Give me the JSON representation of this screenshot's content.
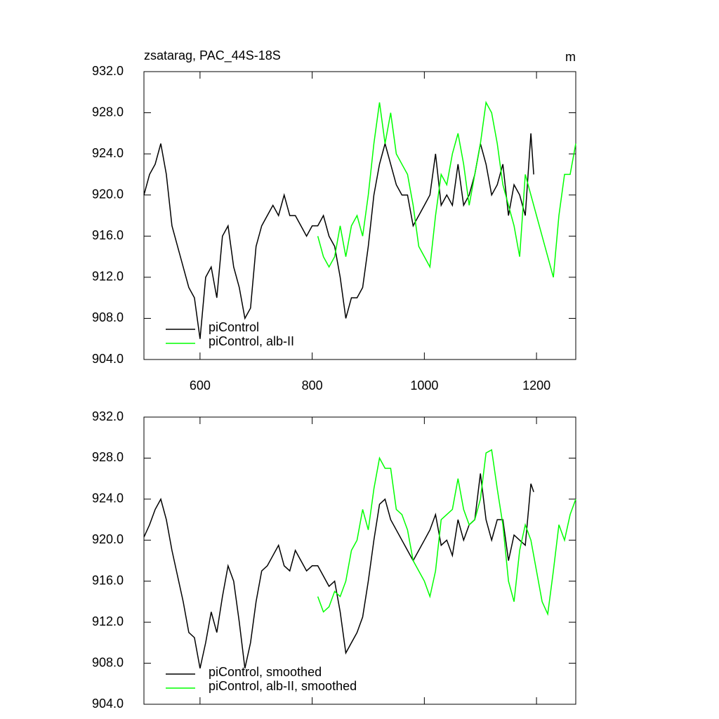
{
  "chart_data": [
    {
      "type": "line",
      "title": "zsatarag, PAC_44S-18S",
      "units": "m",
      "xlim": [
        500,
        1270
      ],
      "xticks": [
        600,
        800,
        1000,
        1200
      ],
      "ylim": [
        904,
        932
      ],
      "yticks": [
        {
          "value": 904,
          "label": "904.0"
        },
        {
          "value": 908,
          "label": "908.0"
        },
        {
          "value": 912,
          "label": "912.0"
        },
        {
          "value": 916,
          "label": "916.0"
        },
        {
          "value": 920,
          "label": "920.0"
        },
        {
          "value": 924,
          "label": "924.0"
        },
        {
          "value": 928,
          "label": "928.0"
        },
        {
          "value": 932,
          "label": "932.0"
        }
      ],
      "series": [
        {
          "name": "piControl",
          "color": "#000000",
          "x": [
            500,
            510,
            520,
            530,
            540,
            550,
            560,
            570,
            580,
            590,
            600,
            610,
            620,
            630,
            640,
            650,
            660,
            670,
            680,
            690,
            700,
            710,
            720,
            730,
            740,
            750,
            760,
            770,
            780,
            790,
            800,
            810,
            820,
            830,
            840,
            850,
            860,
            870,
            880,
            890,
            900,
            910,
            920,
            930,
            940,
            950,
            960,
            970,
            980,
            990,
            1000,
            1010,
            1020,
            1030,
            1040,
            1050,
            1060,
            1070,
            1080,
            1090,
            1100,
            1110,
            1120,
            1130,
            1140,
            1150,
            1160,
            1170,
            1180,
            1190,
            1195
          ],
          "values": [
            920,
            922,
            923,
            925,
            922,
            917,
            915,
            913,
            911,
            910,
            906,
            912,
            913,
            910,
            916,
            917,
            913,
            911,
            908,
            909,
            915,
            917,
            918,
            919,
            918,
            920,
            918,
            918,
            917,
            916,
            917,
            917,
            918,
            916,
            915,
            912,
            908,
            910,
            910,
            911,
            915,
            920,
            923,
            925,
            923,
            921,
            920,
            920,
            917,
            918,
            919,
            920,
            924,
            919,
            920,
            919,
            923,
            919,
            920,
            922,
            925,
            923,
            920,
            921,
            923,
            918,
            921,
            920,
            918,
            926,
            922
          ]
        },
        {
          "name": "piControl, alb-II",
          "color": "#00ff00",
          "x": [
            810,
            820,
            830,
            840,
            850,
            860,
            870,
            880,
            890,
            900,
            910,
            920,
            930,
            940,
            950,
            960,
            970,
            980,
            990,
            1000,
            1010,
            1020,
            1030,
            1040,
            1050,
            1060,
            1070,
            1080,
            1090,
            1100,
            1110,
            1120,
            1130,
            1140,
            1150,
            1160,
            1170,
            1180,
            1190,
            1200,
            1210,
            1220,
            1230,
            1240,
            1250,
            1260,
            1270
          ],
          "values": [
            916,
            914,
            913,
            914,
            917,
            914,
            917,
            918,
            916,
            920,
            925,
            929,
            925,
            928,
            924,
            923,
            922,
            919,
            915,
            914,
            913,
            918,
            922,
            921,
            924,
            926,
            923,
            919,
            922,
            925,
            929,
            928,
            925,
            921,
            919,
            917,
            914,
            922,
            920,
            918,
            916,
            914,
            912,
            918,
            922,
            922,
            925
          ]
        }
      ]
    },
    {
      "type": "line",
      "xlim": [
        500,
        1270
      ],
      "xticks": [
        600,
        800,
        1000,
        1200
      ],
      "ylim": [
        904,
        932
      ],
      "yticks": [
        {
          "value": 904,
          "label": "904.0"
        },
        {
          "value": 908,
          "label": "908.0"
        },
        {
          "value": 912,
          "label": "912.0"
        },
        {
          "value": 916,
          "label": "916.0"
        },
        {
          "value": 920,
          "label": "920.0"
        },
        {
          "value": 924,
          "label": "924.0"
        },
        {
          "value": 928,
          "label": "928.0"
        },
        {
          "value": 932,
          "label": "932.0"
        }
      ],
      "series": [
        {
          "name": "piControl, smoothed",
          "color": "#000000",
          "x": [
            500,
            510,
            520,
            530,
            540,
            550,
            560,
            570,
            580,
            590,
            600,
            610,
            620,
            630,
            640,
            650,
            660,
            670,
            680,
            690,
            700,
            710,
            720,
            730,
            740,
            750,
            760,
            770,
            780,
            790,
            800,
            810,
            820,
            830,
            840,
            850,
            860,
            870,
            880,
            890,
            900,
            910,
            920,
            930,
            940,
            950,
            960,
            970,
            980,
            990,
            1000,
            1010,
            1020,
            1030,
            1040,
            1050,
            1060,
            1070,
            1080,
            1090,
            1100,
            1110,
            1120,
            1130,
            1140,
            1150,
            1160,
            1170,
            1180,
            1190,
            1195
          ],
          "values": [
            920.3,
            921.5,
            923,
            924,
            922,
            919,
            916.5,
            914,
            911,
            910.5,
            907.5,
            910,
            913,
            911,
            914.5,
            917.5,
            916,
            912,
            907.5,
            910,
            914,
            917,
            917.5,
            918.5,
            919.5,
            917.5,
            917,
            919,
            918,
            917,
            917.5,
            917.5,
            916.5,
            915.5,
            916,
            913,
            909,
            910,
            911,
            912.5,
            916,
            920,
            923.5,
            924,
            922,
            921,
            920,
            919,
            918,
            919,
            920,
            921,
            922.5,
            919.5,
            920,
            918.5,
            922,
            920,
            921.5,
            922,
            926.5,
            922,
            920,
            922,
            922,
            918,
            920.5,
            920,
            919.5,
            925.5,
            924.7
          ]
        },
        {
          "name": "piControl, alb-II, smoothed",
          "color": "#00ff00",
          "x": [
            810,
            820,
            830,
            840,
            850,
            860,
            870,
            880,
            890,
            900,
            910,
            920,
            930,
            940,
            950,
            960,
            970,
            980,
            990,
            1000,
            1010,
            1020,
            1030,
            1040,
            1050,
            1060,
            1070,
            1080,
            1090,
            1100,
            1110,
            1120,
            1130,
            1140,
            1150,
            1160,
            1170,
            1180,
            1190,
            1200,
            1210,
            1220,
            1230,
            1240,
            1250,
            1260,
            1270
          ],
          "values": [
            914.5,
            913,
            913.5,
            915,
            914.5,
            916,
            919,
            920,
            923,
            921,
            925,
            928,
            927,
            927,
            923,
            922.5,
            921,
            918,
            917,
            916,
            914.5,
            917,
            922,
            922.5,
            923,
            926,
            923,
            921.5,
            922,
            924,
            928.5,
            928.8,
            925,
            921.5,
            916,
            914,
            919,
            921.5,
            920,
            917,
            914,
            912.8,
            917,
            921.5,
            920,
            922.5,
            924
          ]
        }
      ]
    }
  ]
}
